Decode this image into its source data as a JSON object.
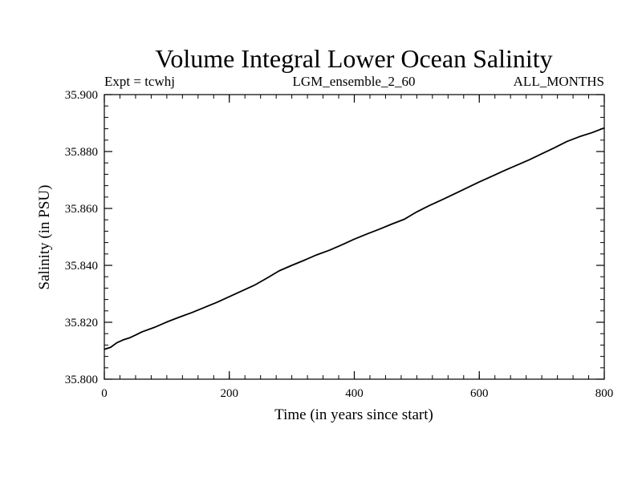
{
  "chart_data": {
    "type": "line",
    "title": "Volume Integral Lower Ocean Salinity",
    "subtitle_left": "Expt = tcwhj",
    "subtitle_center": "LGM_ensemble_2_60",
    "subtitle_right": "ALL_MONTHS",
    "xlabel": "Time (in years since start)",
    "ylabel": "Salinity (in PSU)",
    "xlim": [
      0,
      800
    ],
    "ylim": [
      35.8,
      35.9
    ],
    "x_ticks": [
      0,
      200,
      400,
      600,
      800
    ],
    "x_tick_labels": [
      "0",
      "200",
      "400",
      "600",
      "800"
    ],
    "y_ticks": [
      35.8,
      35.82,
      35.84,
      35.86,
      35.88,
      35.9
    ],
    "y_tick_labels": [
      "35.800",
      "35.820",
      "35.840",
      "35.860",
      "35.880",
      "35.900"
    ],
    "x_minor_step": 25,
    "y_minor_step": 0.004,
    "grid": false,
    "series": [
      {
        "name": "salinity",
        "color": "#000000",
        "x": [
          0,
          10,
          20,
          30,
          40,
          50,
          60,
          80,
          100,
          120,
          140,
          160,
          180,
          200,
          220,
          240,
          260,
          280,
          300,
          320,
          340,
          360,
          380,
          400,
          420,
          440,
          460,
          480,
          500,
          520,
          540,
          560,
          580,
          600,
          620,
          640,
          660,
          680,
          700,
          720,
          740,
          760,
          780,
          800
        ],
        "values": [
          35.8105,
          35.8112,
          35.8128,
          35.8138,
          35.8145,
          35.8155,
          35.8166,
          35.8182,
          35.8201,
          35.8218,
          35.8234,
          35.8252,
          35.827,
          35.829,
          35.831,
          35.833,
          35.8355,
          35.8381,
          35.84,
          35.8418,
          35.8437,
          35.8453,
          35.8472,
          35.8492,
          35.851,
          35.8527,
          35.8545,
          35.8562,
          35.8588,
          35.861,
          35.863,
          35.8651,
          35.8672,
          35.8693,
          35.8713,
          35.8733,
          35.8752,
          35.8771,
          35.8792,
          35.8813,
          35.8835,
          35.8852,
          35.8866,
          35.8883
        ]
      }
    ]
  }
}
